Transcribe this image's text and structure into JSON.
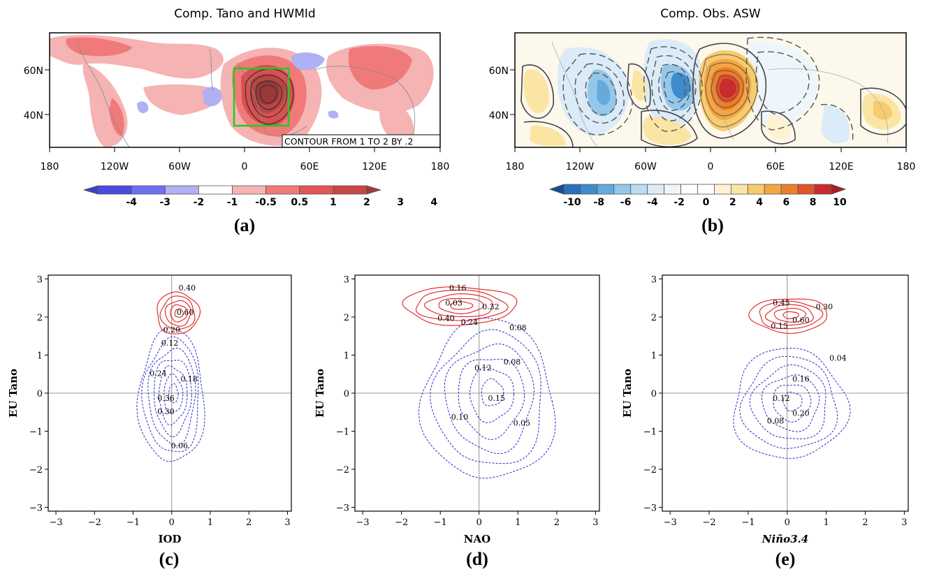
{
  "panels": {
    "a": {
      "letter": "(a)",
      "title": "Comp. Tano and HWMId",
      "note": "CONTOUR FROM 1 TO 2 BY .2",
      "lon_ticks": [
        "180",
        "120W",
        "60W",
        "0",
        "60E",
        "120E",
        "180"
      ],
      "lat_ticks": [
        "60N",
        "40N"
      ],
      "colorbar_labels": [
        "-4",
        "-3",
        "-2",
        "-1",
        "-0.5",
        "0.5",
        "1",
        "2",
        "3",
        "4"
      ],
      "colorbar_colors": [
        "#3f3fc2",
        "#4b4bde",
        "#6f6ff2",
        "#b0b0f5",
        "#ffffff",
        "#f6b3b3",
        "#f07a7a",
        "#e25555",
        "#c84545",
        "#a23a3a"
      ],
      "box_color": "#22cc22"
    },
    "b": {
      "letter": "(b)",
      "title": "Comp. Obs. ASW",
      "lon_ticks": [
        "180",
        "120W",
        "60W",
        "0",
        "60E",
        "120E",
        "180"
      ],
      "lat_ticks": [
        "60N",
        "40N"
      ],
      "colorbar_labels": [
        "-10",
        "-8",
        "-6",
        "-4",
        "-2",
        "0",
        "2",
        "4",
        "6",
        "8",
        "10"
      ],
      "colorbar_colors": [
        "#1d4b8f",
        "#2a6fb8",
        "#3e8ccb",
        "#66aadb",
        "#94c7ea",
        "#bcdcf2",
        "#dbebf7",
        "#eef5fb",
        "#ffffff",
        "#ffffff",
        "#fdf3d2",
        "#fbe5a5",
        "#f8cb70",
        "#f3a641",
        "#ec7f2a",
        "#e0542a",
        "#c92c2c",
        "#a81c26"
      ]
    },
    "c": {
      "letter": "(c)",
      "xlabel": "IOD",
      "ylabel": "EU Tano",
      "red_labels": [
        "0.40",
        "0.60",
        "0.20"
      ],
      "blue_labels": [
        "0.12",
        "0.24",
        "0.18",
        "0.36",
        "0.30",
        "0.06"
      ]
    },
    "d": {
      "letter": "(d)",
      "xlabel": "NAO",
      "ylabel": "EU Tano",
      "red_labels": [
        "0.16",
        "0.03",
        "0.32",
        "0.40",
        "0.24"
      ],
      "blue_labels": [
        "0.08",
        "0.08",
        "0.12",
        "0.15",
        "0.10",
        "0.05"
      ]
    },
    "e": {
      "letter": "(e)",
      "xlabel": "Niño3.4",
      "ylabel": "EU Tano",
      "red_labels": [
        "0.45",
        "0.30",
        "0.60",
        "0.15"
      ],
      "blue_labels": [
        "0.04",
        "0.16",
        "0.12",
        "0.20",
        "0.08"
      ]
    }
  },
  "chart_data": [
    {
      "type": "heatmap",
      "panel": "a",
      "title": "Comp. Tano and HWMId",
      "xlabel": "",
      "ylabel": "",
      "xlim": [
        -180,
        180
      ],
      "ylim": [
        25,
        75
      ],
      "colorbar": [
        -4,
        -3,
        -2,
        -1,
        -0.5,
        0.5,
        1,
        2,
        3,
        4
      ],
      "contours": [
        1.0,
        1.2,
        1.4,
        1.6,
        1.8,
        2.0
      ],
      "box": {
        "lon": [
          -10,
          40
        ],
        "lat": [
          35,
          60
        ]
      }
    },
    {
      "type": "heatmap",
      "panel": "b",
      "title": "Comp. Obs. ASW",
      "xlabel": "",
      "ylabel": "",
      "xlim": [
        -180,
        180
      ],
      "ylim": [
        25,
        75
      ],
      "colorbar": [
        -10,
        -8,
        -6,
        -4,
        -2,
        0,
        2,
        4,
        6,
        8,
        10
      ]
    },
    {
      "type": "line",
      "panel": "c",
      "xlabel": "IOD",
      "ylabel": "EU Tano",
      "xlim": [
        -3.2,
        3.1
      ],
      "ylim": [
        -3.1,
        3.1
      ],
      "xticks": [
        -3,
        -2,
        -1,
        0,
        1,
        2,
        3
      ],
      "yticks": [
        -3,
        -2,
        -1,
        0,
        1,
        2,
        3
      ],
      "red_center": [
        0.15,
        2.1
      ],
      "blue_center": [
        0.0,
        -0.1
      ]
    },
    {
      "type": "line",
      "panel": "d",
      "xlabel": "NAO",
      "ylabel": "EU Tano",
      "xlim": [
        -3.2,
        3.1
      ],
      "ylim": [
        -3.1,
        3.1
      ],
      "xticks": [
        -3,
        -2,
        -1,
        0,
        1,
        2,
        3
      ],
      "yticks": [
        -3,
        -2,
        -1,
        0,
        1,
        2,
        3
      ],
      "red_center": [
        -0.5,
        2.3
      ],
      "blue_center": [
        0.25,
        -0.2
      ]
    },
    {
      "type": "line",
      "panel": "e",
      "xlabel": "Niño3.4",
      "ylabel": "EU Tano",
      "xlim": [
        -3.2,
        3.1
      ],
      "ylim": [
        -3.1,
        3.1
      ],
      "xticks": [
        -3,
        -2,
        -1,
        0,
        1,
        2,
        3
      ],
      "yticks": [
        -3,
        -2,
        -1,
        0,
        1,
        2,
        3
      ],
      "red_center": [
        0.05,
        2.05
      ],
      "blue_center": [
        0.05,
        -0.3
      ]
    }
  ]
}
